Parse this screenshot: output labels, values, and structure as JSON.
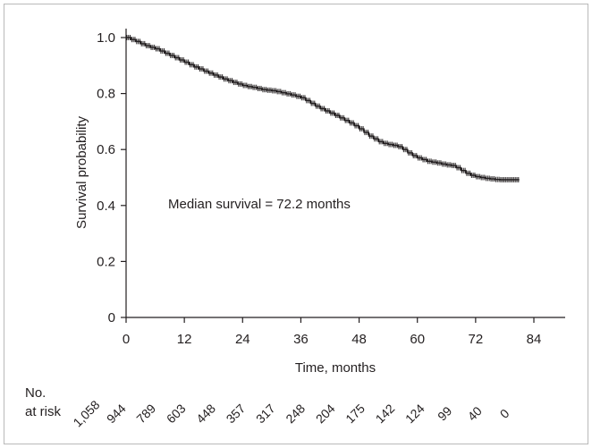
{
  "chart_data": {
    "type": "line",
    "title": "",
    "xlabel": "Time, months",
    "ylabel": "Survival probability",
    "xlim": [
      0,
      84
    ],
    "ylim": [
      0,
      1.0
    ],
    "x_ticks": [
      0,
      12,
      24,
      36,
      48,
      60,
      72,
      84
    ],
    "x_tick_labels": [
      "0",
      "12",
      "24",
      "36",
      "48",
      "60",
      "72",
      "84"
    ],
    "y_ticks": [
      0,
      0.2,
      0.4,
      0.6,
      0.8,
      1.0
    ],
    "y_tick_labels": [
      "0",
      "0.2",
      "0.4",
      "0.6",
      "0.8",
      "1.0"
    ],
    "grid": false,
    "series": [
      {
        "x": [
          0,
          1,
          2,
          3,
          4,
          5,
          6,
          7,
          8,
          9,
          10,
          11,
          12,
          13,
          14,
          15,
          16,
          17,
          18,
          19,
          20,
          21,
          22,
          23,
          24,
          25,
          26,
          27,
          28,
          29,
          30,
          31,
          32,
          33,
          34,
          35,
          36,
          37,
          38,
          39,
          40,
          41,
          42,
          43,
          44,
          45,
          46,
          47,
          48,
          49,
          50,
          51,
          52,
          53,
          54,
          55,
          56,
          57,
          58,
          59,
          60,
          61,
          62,
          63,
          64,
          65,
          66,
          67,
          68,
          69,
          70,
          71,
          72,
          73,
          74,
          75,
          76,
          77,
          78,
          79,
          80,
          81
        ],
        "y": [
          1.0,
          0.993,
          0.986,
          0.978,
          0.971,
          0.965,
          0.96,
          0.952,
          0.944,
          0.936,
          0.928,
          0.92,
          0.912,
          0.903,
          0.895,
          0.888,
          0.88,
          0.873,
          0.866,
          0.859,
          0.852,
          0.846,
          0.84,
          0.834,
          0.829,
          0.825,
          0.822,
          0.818,
          0.814,
          0.812,
          0.81,
          0.807,
          0.803,
          0.799,
          0.795,
          0.79,
          0.785,
          0.775,
          0.765,
          0.755,
          0.746,
          0.738,
          0.73,
          0.722,
          0.713,
          0.704,
          0.695,
          0.685,
          0.674,
          0.661,
          0.648,
          0.638,
          0.628,
          0.622,
          0.618,
          0.615,
          0.61,
          0.6,
          0.588,
          0.578,
          0.57,
          0.564,
          0.558,
          0.555,
          0.552,
          0.548,
          0.545,
          0.543,
          0.535,
          0.525,
          0.515,
          0.508,
          0.503,
          0.5,
          0.497,
          0.495,
          0.493,
          0.492,
          0.492,
          0.492,
          0.492,
          0.492
        ]
      }
    ],
    "annotations": [
      "Median survival = 72.2 months"
    ],
    "risk_table": {
      "label_line1": "No.",
      "label_line2": "at risk",
      "values": [
        "1,058",
        "944",
        "789",
        "603",
        "448",
        "357",
        "317",
        "248",
        "204",
        "175",
        "142",
        "124",
        "99",
        "40",
        "0"
      ]
    }
  }
}
